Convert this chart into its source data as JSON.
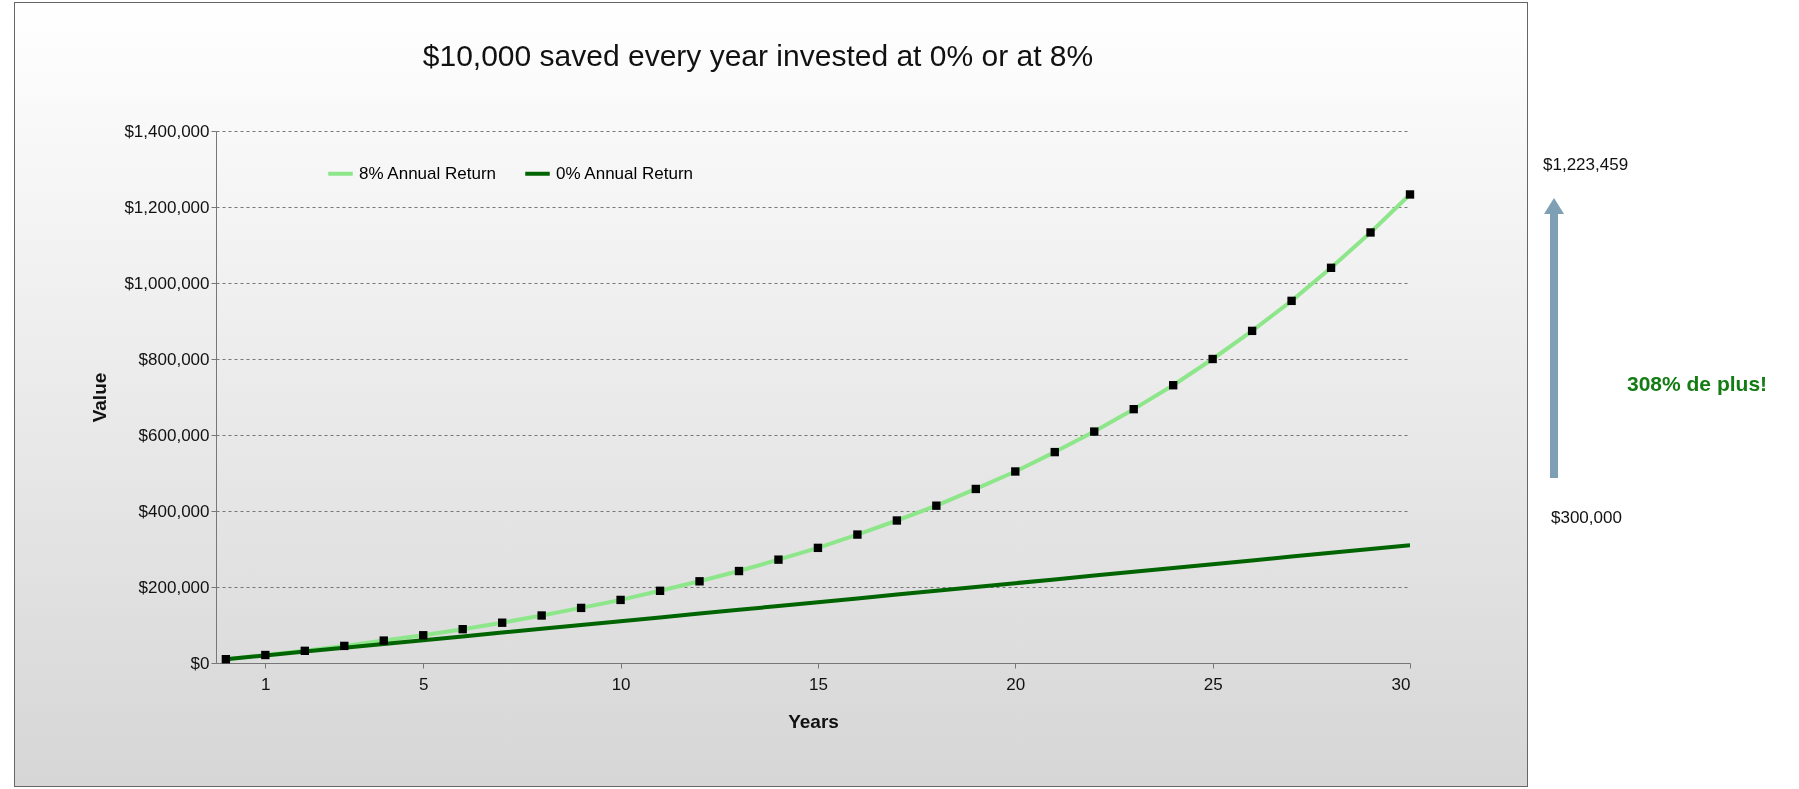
{
  "chart_data": {
    "type": "line",
    "title": "$10,000 saved every year invested at 0% or at 8%",
    "xlabel": "Years",
    "ylabel": "Value",
    "x": [
      0,
      1,
      2,
      3,
      4,
      5,
      6,
      7,
      8,
      9,
      10,
      11,
      12,
      13,
      14,
      15,
      16,
      17,
      18,
      19,
      20,
      21,
      22,
      23,
      24,
      25,
      26,
      27,
      28,
      29,
      30
    ],
    "series": [
      {
        "name": "8% Annual Return",
        "color": "#8ee68a",
        "marker": "square",
        "values": [
          10000,
          21000,
          32000,
          45000,
          59000,
          73000,
          89000,
          106000,
          125000,
          145000,
          166000,
          190000,
          215000,
          242000,
          272000,
          303000,
          338000,
          375000,
          414000,
          458000,
          504000,
          555000,
          609000,
          668000,
          731000,
          800000,
          874000,
          953000,
          1040000,
          1133000,
          1233000
        ]
      },
      {
        "name": "0% Annual Return",
        "color": "#006400",
        "marker": "none",
        "values": [
          10000,
          20000,
          30000,
          40000,
          50000,
          60000,
          70000,
          80000,
          90000,
          100000,
          110000,
          120000,
          130000,
          140000,
          150000,
          160000,
          170000,
          180000,
          190000,
          200000,
          210000,
          220000,
          230000,
          240000,
          250000,
          260000,
          270000,
          280000,
          290000,
          300000,
          310000
        ]
      }
    ],
    "xlim": [
      -0.25,
      30
    ],
    "xticks": [
      1,
      5,
      10,
      15,
      20,
      25,
      30
    ],
    "ylim": [
      0,
      1400000
    ],
    "yticks": [
      {
        "value": 0,
        "label": "$0"
      },
      {
        "value": 200000,
        "label": "$200,000"
      },
      {
        "value": 400000,
        "label": "$400,000"
      },
      {
        "value": 600000,
        "label": "$600,000"
      },
      {
        "value": 800000,
        "label": "$800,000"
      },
      {
        "value": 1000000,
        "label": "$1,000,000"
      },
      {
        "value": 1200000,
        "label": "$1,200,000"
      },
      {
        "value": 1400000,
        "label": "$1,400,000"
      }
    ],
    "grid": "y",
    "legend": "top left",
    "line_style": "solid",
    "annotations": [
      "$1,223,459",
      "308% de plus!",
      "$300,000"
    ]
  }
}
